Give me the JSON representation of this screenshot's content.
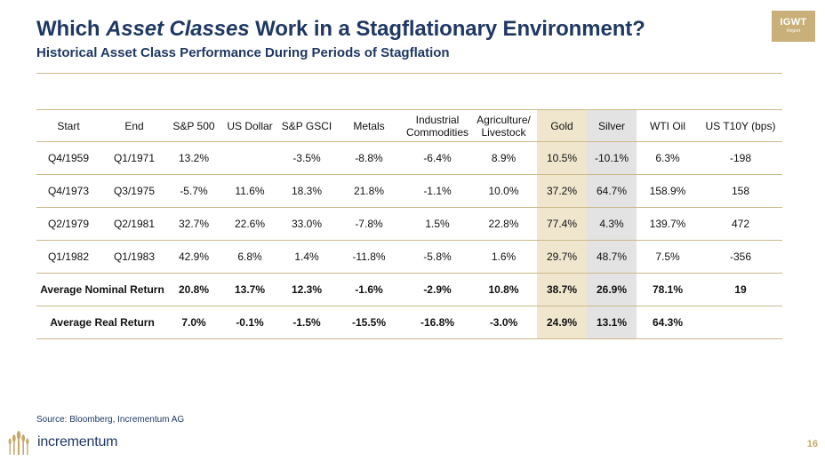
{
  "slide": {
    "title_prefix": "Which ",
    "title_emph": "Asset Classes",
    "title_suffix": " Work in a Stagflationary Environment?",
    "subtitle": "Historical Asset Class Performance During Periods of Stagflation",
    "badge_big": "IGWT",
    "badge_small": "Report",
    "source": "Source: Bloomberg, Incrementum AG",
    "brand": "incrementum",
    "page_number": "16",
    "colors": {
      "title": "#1f3864",
      "gold_highlight": "#efe6cd",
      "silver_highlight": "#e3e3e3",
      "rule": "#c9b98a",
      "badge": "#c8b078"
    }
  },
  "table": {
    "headers": [
      "Start",
      "End",
      "S&P 500",
      "US Dollar",
      "S&P GSCI",
      "Metals",
      "Industrial Commodities",
      "Agriculture/ Livestock",
      "Gold",
      "Silver",
      "WTI Oil",
      "US T10Y (bps)"
    ],
    "rows": [
      [
        "Q4/1959",
        "Q1/1971",
        "13.2%",
        "",
        "-3.5%",
        "-8.8%",
        "-6.4%",
        "8.9%",
        "10.5%",
        "-10.1%",
        "6.3%",
        "-198"
      ],
      [
        "Q4/1973",
        "Q3/1975",
        "-5.7%",
        "11.6%",
        "18.3%",
        "21.8%",
        "-1.1%",
        "10.0%",
        "37.2%",
        "64.7%",
        "158.9%",
        "158"
      ],
      [
        "Q2/1979",
        "Q2/1981",
        "32.7%",
        "22.6%",
        "33.0%",
        "-7.8%",
        "1.5%",
        "22.8%",
        "77.4%",
        "4.3%",
        "139.7%",
        "472"
      ],
      [
        "Q1/1982",
        "Q1/1983",
        "42.9%",
        "6.8%",
        "1.4%",
        "-11.8%",
        "-5.8%",
        "1.6%",
        "29.7%",
        "48.7%",
        "7.5%",
        "-356"
      ]
    ],
    "summary_rows": [
      {
        "label": "Average Nominal Return",
        "values": [
          "20.8%",
          "13.7%",
          "12.3%",
          "-1.6%",
          "-2.9%",
          "10.8%",
          "38.7%",
          "26.9%",
          "78.1%",
          "19"
        ]
      },
      {
        "label": "Average Real Return",
        "values": [
          "7.0%",
          "-0.1%",
          "-1.5%",
          "-15.5%",
          "-16.8%",
          "-3.0%",
          "24.9%",
          "13.1%",
          "64.3%",
          ""
        ]
      }
    ]
  }
}
